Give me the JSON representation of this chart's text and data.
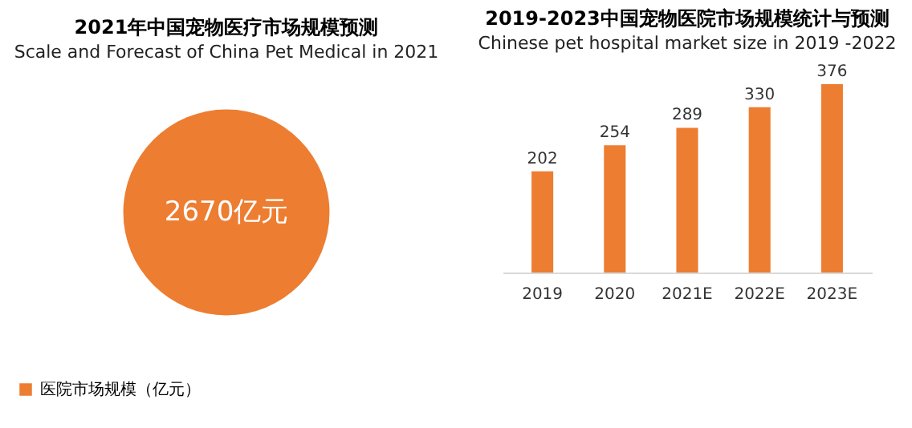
{
  "chart_data": [
    {
      "type": "other",
      "title": "2021年中国宠物医疗市场规模预测",
      "subtitle": "Scale and Forecast of  China Pet Medical  in 2021",
      "color": "#ed7d31",
      "annotations": [
        "2670亿元"
      ]
    },
    {
      "type": "bar",
      "title": "2019-2023中国宠物医院市场规模统计与预测",
      "subtitle": "Chinese pet hospital market size in 2019 -2022",
      "categories": [
        "2019",
        "2020",
        "2021E",
        "2022E",
        "2023E"
      ],
      "series": [
        {
          "name": "医院市场规模（亿元）",
          "color": "#ed7d31",
          "values": [
            202,
            254,
            289,
            330,
            376
          ]
        }
      ],
      "data_labels": true,
      "legend": "bottom"
    }
  ]
}
